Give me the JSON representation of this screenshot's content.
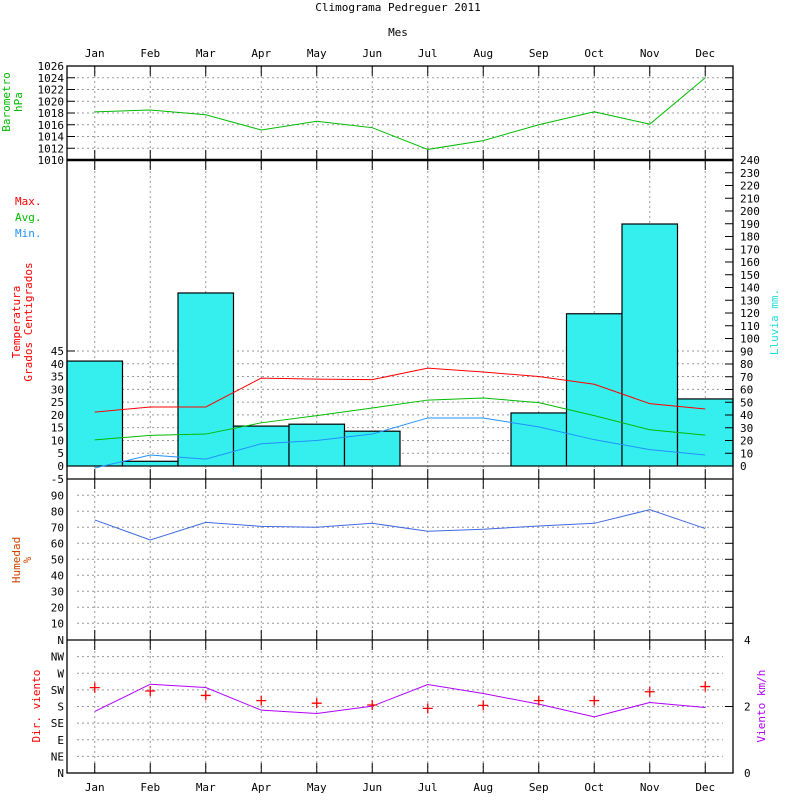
{
  "chart_data": {
    "type": "climograph",
    "title": "Climograma Pedreguer 2011",
    "xlabel": "Mes",
    "months": [
      "Jan",
      "Feb",
      "Mar",
      "Apr",
      "May",
      "Jun",
      "Jul",
      "Aug",
      "Sep",
      "Oct",
      "Nov",
      "Dec"
    ],
    "barometer": {
      "label": [
        "Barometro",
        "hPa"
      ],
      "ylim": [
        1010,
        1026
      ],
      "ticks": [
        "1010",
        "1012",
        "1014",
        "1016",
        "1018",
        "1020",
        "1022",
        "1024",
        "1026"
      ],
      "values": [
        1018.2,
        1018.5,
        1017.7,
        1015.1,
        1016.6,
        1015.5,
        1011.8,
        1013.3,
        1016.0,
        1018.2,
        1016.1,
        1024.0
      ],
      "color": "#00bb00"
    },
    "temperature": {
      "label": [
        "Temperatura",
        "Grados Centigrados"
      ],
      "ylim": [
        -5,
        45
      ],
      "ticks": [
        "-5",
        "0",
        "5",
        "10",
        "15",
        "20",
        "25",
        "30",
        "35",
        "40",
        "45"
      ],
      "legend": [
        {
          "name": "Max.",
          "color": "#ff0000"
        },
        {
          "name": "Avg.",
          "color": "#00bb00"
        },
        {
          "name": "Min.",
          "color": "#1e90ff"
        }
      ],
      "series": [
        {
          "name": "Max.",
          "values": [
            21.1,
            23.1,
            23.1,
            34.4,
            34.0,
            33.8,
            38.3,
            36.8,
            35.0,
            32.0,
            24.4,
            22.3
          ]
        },
        {
          "name": "Avg.",
          "values": [
            10.2,
            12.0,
            12.5,
            16.9,
            19.7,
            22.7,
            25.8,
            26.6,
            24.8,
            19.7,
            14.2,
            12.1
          ]
        },
        {
          "name": "Min.",
          "values": [
            -0.8,
            4.3,
            2.7,
            8.7,
            10.0,
            12.5,
            18.8,
            18.8,
            15.3,
            10.3,
            6.4,
            4.3
          ]
        }
      ]
    },
    "rain": {
      "label": "Lluvia mm.",
      "ylim": [
        0,
        240
      ],
      "ticks": [
        "0",
        "10",
        "20",
        "30",
        "40",
        "50",
        "60",
        "70",
        "80",
        "90",
        "100",
        "110",
        "120",
        "130",
        "140",
        "150",
        "160",
        "170",
        "180",
        "190",
        "200",
        "210",
        "220",
        "230",
        "240"
      ],
      "values": [
        82.3,
        3.7,
        135.7,
        31.3,
        32.8,
        27.3,
        0,
        0,
        41.6,
        119.4,
        189.8,
        52.6
      ],
      "color": "#35efef"
    },
    "humidity": {
      "label": [
        "Humedad",
        "%"
      ],
      "ylim": [
        0,
        100
      ],
      "ticks": [
        "10",
        "20",
        "30",
        "40",
        "50",
        "60",
        "70",
        "80",
        "90"
      ],
      "values": [
        74.6,
        62.1,
        73.1,
        70.6,
        70.0,
        72.5,
        67.5,
        68.8,
        70.8,
        72.5,
        81.0,
        69.2
      ],
      "color": "#4169e1"
    },
    "wind": {
      "dir_label": "Dir. viento",
      "speed_label": "Viento km/h",
      "dir_ticks": [
        "N",
        "NE",
        "E",
        "SE",
        "S",
        "SW",
        "W",
        "NW",
        "N"
      ],
      "speed_ticks": [
        "0",
        "2",
        "4"
      ],
      "speed_ylim": [
        0,
        4
      ],
      "direction_deg": [
        231,
        222,
        210,
        196,
        189,
        184,
        175,
        183,
        196,
        196,
        220,
        234
      ],
      "speed": [
        1.85,
        2.67,
        2.57,
        1.89,
        1.79,
        2.01,
        2.66,
        2.39,
        2.07,
        1.69,
        2.12,
        1.97
      ],
      "dir_color": "#ff0000",
      "speed_color": "#b000ff"
    },
    "grid": true
  }
}
